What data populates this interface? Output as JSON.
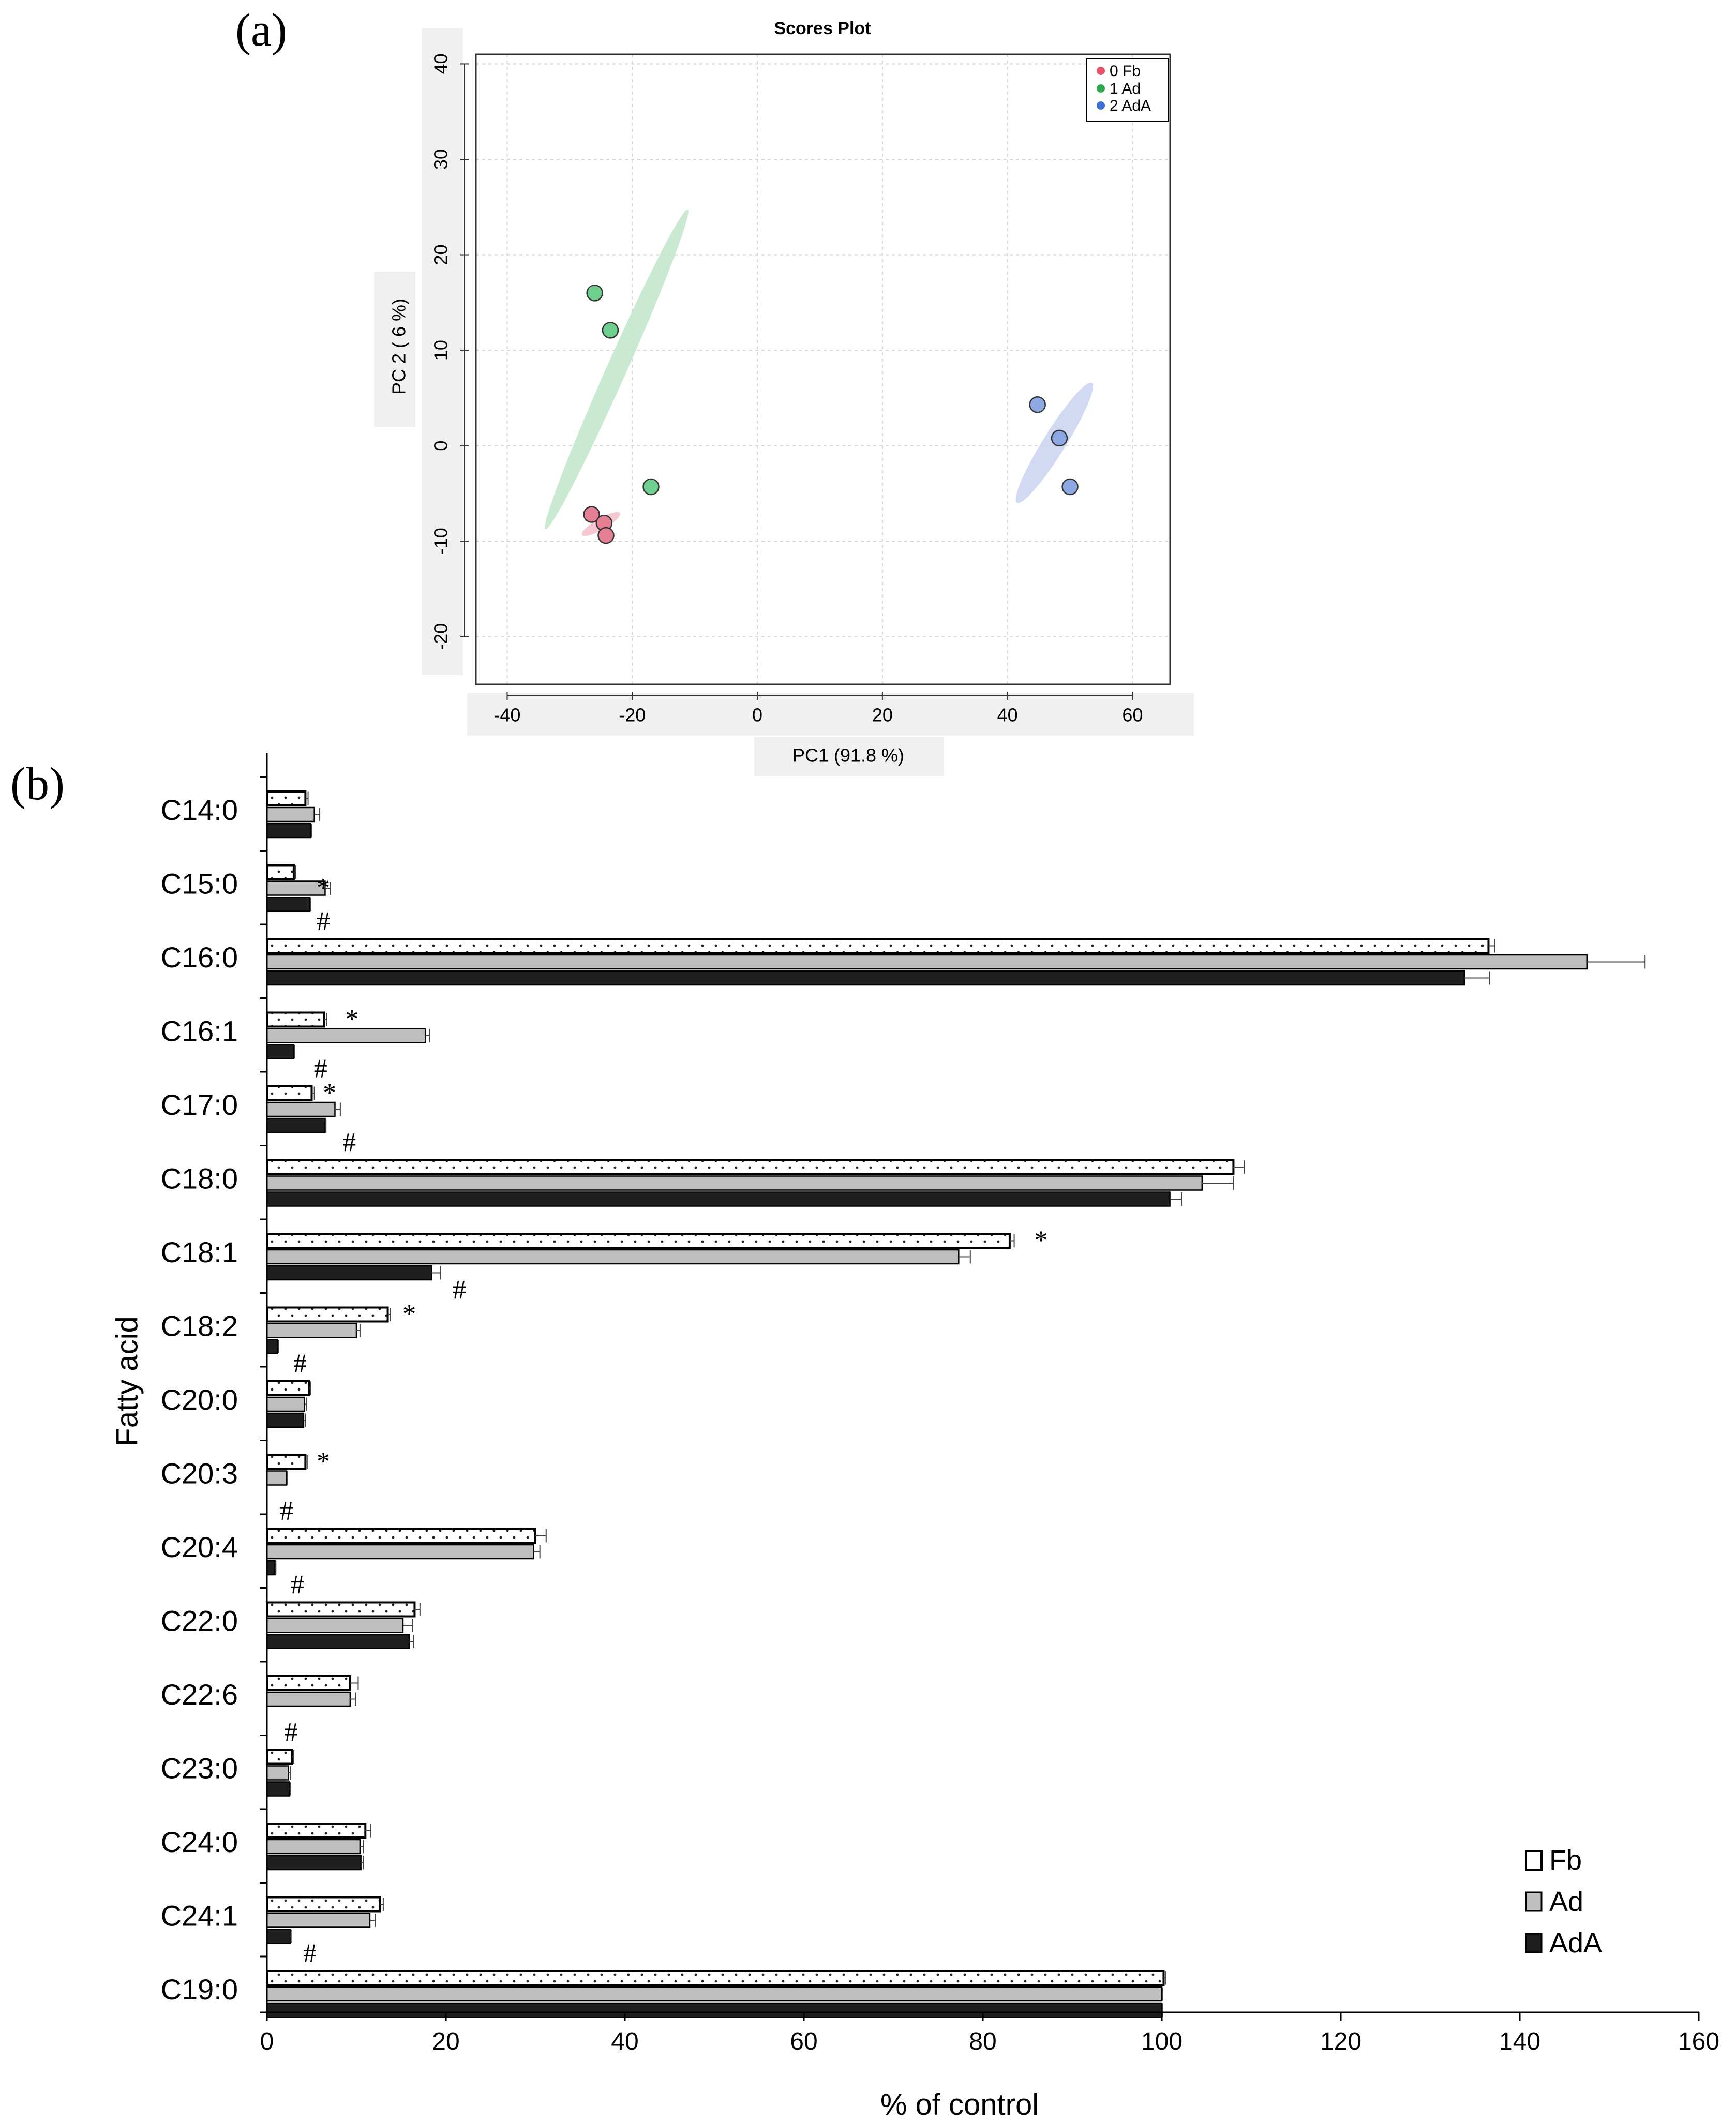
{
  "panel_a": {
    "label": "(a)",
    "chart_data": {
      "type": "scatter",
      "title": "Scores Plot",
      "xlabel": "PC1 (91.8 %)",
      "ylabel": "PC 2 ( 6 %)",
      "xlim": [
        -45,
        66
      ],
      "ylim": [
        -25,
        41
      ],
      "xticks": [
        -40,
        -20,
        0,
        20,
        40,
        60
      ],
      "yticks": [
        -20,
        -10,
        0,
        10,
        20,
        30,
        40
      ],
      "legend": [
        "0 Fb",
        "1 Ad",
        "2 AdA"
      ],
      "groups": [
        {
          "name": "0 Fb",
          "color": "#e8516a",
          "fill": "#e57f93",
          "ellipse_color": "#f3bdc8",
          "points": [
            [
              -26.5,
              -7.2
            ],
            [
              -24.5,
              -8.1
            ],
            [
              -24.2,
              -9.4
            ]
          ],
          "ellipse": {
            "cx": -25,
            "cy": -8.2,
            "halfLength": 3.5,
            "halfWidth": 0.9,
            "angle": -30
          }
        },
        {
          "name": "1 Ad",
          "color": "#2ea84e",
          "fill": "#6fcf8e",
          "ellipse_color": "#bfe6c8",
          "points": [
            [
              -26,
              16
            ],
            [
              -23.5,
              12.1
            ],
            [
              -17,
              -4.3
            ]
          ],
          "ellipse": {
            "cx": -22.5,
            "cy": 8,
            "halfLength": 28,
            "halfWidth": 1.6,
            "angle": -66
          }
        },
        {
          "name": "2 AdA",
          "color": "#3b6fd3",
          "fill": "#8ea8e4",
          "ellipse_color": "#c9d4f0",
          "points": [
            [
              44.8,
              4.3
            ],
            [
              48.3,
              0.8
            ],
            [
              50,
              -4.3
            ]
          ],
          "ellipse": {
            "cx": 47.5,
            "cy": 0.3,
            "halfLength": 11.3,
            "halfWidth": 1.8,
            "angle": -58
          }
        }
      ]
    }
  },
  "panel_b": {
    "label": "(b)",
    "chart_data": {
      "type": "bar",
      "orientation": "horizontal",
      "xlabel": "% of control",
      "ylabel": "Fatty acid",
      "xlim": [
        0,
        160
      ],
      "xticks": [
        0,
        20,
        40,
        60,
        80,
        100,
        120,
        140,
        160
      ],
      "legend_position": "bottom-right",
      "categories": [
        "C14:0",
        "C15:0",
        "C16:0",
        "C16:1",
        "C17:0",
        "C18:0",
        "C18:1",
        "C18:2",
        "C20:0",
        "C20:3",
        "C20:4",
        "C22:0",
        "C22:6",
        "C23:0",
        "C24:0",
        "C24:1",
        "C19:0"
      ],
      "series": [
        {
          "name": "Fb",
          "values": [
            4.3,
            3,
            136.5,
            6.4,
            5,
            108,
            83,
            13.5,
            4.7,
            4.3,
            30,
            16.5,
            9.3,
            2.8,
            11,
            12.6,
            100.2
          ],
          "errors": [
            0.3,
            0.2,
            0.7,
            0.3,
            0.3,
            1.2,
            0.5,
            0.3,
            0.2,
            0.2,
            1.2,
            0.6,
            0.9,
            0.2,
            0.6,
            0.4,
            0.2
          ]
        },
        {
          "name": "Ad",
          "values": [
            5.3,
            6.5,
            147.5,
            17.7,
            7.6,
            104.5,
            77.3,
            10,
            4.2,
            2.2,
            29.8,
            15.2,
            9.3,
            2.4,
            10.4,
            11.5,
            100
          ],
          "errors": [
            0.6,
            0.6,
            6.5,
            0.5,
            0.6,
            3.5,
            1.3,
            0.4,
            0.2,
            0.1,
            0.7,
            1.1,
            0.6,
            0.2,
            0.4,
            0.6,
            0.1
          ]
        },
        {
          "name": "AdA",
          "values": [
            4.9,
            4.8,
            133.8,
            3,
            6.5,
            100.9,
            18.4,
            1.2,
            4.1,
            0,
            0.9,
            15.9,
            0,
            2.5,
            10.5,
            2.6,
            100
          ],
          "errors": [
            0.1,
            0.1,
            2.8,
            0.1,
            0.1,
            1.3,
            1,
            0.1,
            0.2,
            0,
            0.1,
            0.5,
            0,
            0.1,
            0.3,
            0.1,
            0.1
          ]
        }
      ],
      "annotations": [
        {
          "category": "C15:0",
          "text": "*",
          "series": "Ad",
          "value": 6.3
        },
        {
          "category": "C15:0",
          "text": "#",
          "series": "AdA",
          "value": 6.3
        },
        {
          "category": "C16:1",
          "text": "*",
          "series": "Fb",
          "value": 9.5
        },
        {
          "category": "C16:1",
          "text": "#",
          "series": "AdA",
          "value": 6
        },
        {
          "category": "C17:0",
          "text": "*",
          "series": "Fb",
          "value": 7
        },
        {
          "category": "C17:0",
          "text": "#",
          "series": "AdA",
          "value": 9.2
        },
        {
          "category": "C18:1",
          "text": "*",
          "series": "Fb",
          "value": 86.5
        },
        {
          "category": "C18:1",
          "text": "#",
          "series": "AdA",
          "value": 21.5
        },
        {
          "category": "C18:2",
          "text": "*",
          "series": "Fb",
          "value": 15.9
        },
        {
          "category": "C18:2",
          "text": "#",
          "series": "AdA",
          "value": 3.7
        },
        {
          "category": "C20:3",
          "text": "*",
          "series": "Fb",
          "value": 6.3
        },
        {
          "category": "C20:3",
          "text": "#",
          "series": "AdA",
          "value": 2.2
        },
        {
          "category": "C20:4",
          "text": "#",
          "series": "AdA",
          "value": 3.4
        },
        {
          "category": "C22:6",
          "text": "#",
          "series": "AdA",
          "value": 2.7
        },
        {
          "category": "C24:1",
          "text": "#",
          "series": "AdA",
          "value": 4.8
        }
      ]
    }
  }
}
